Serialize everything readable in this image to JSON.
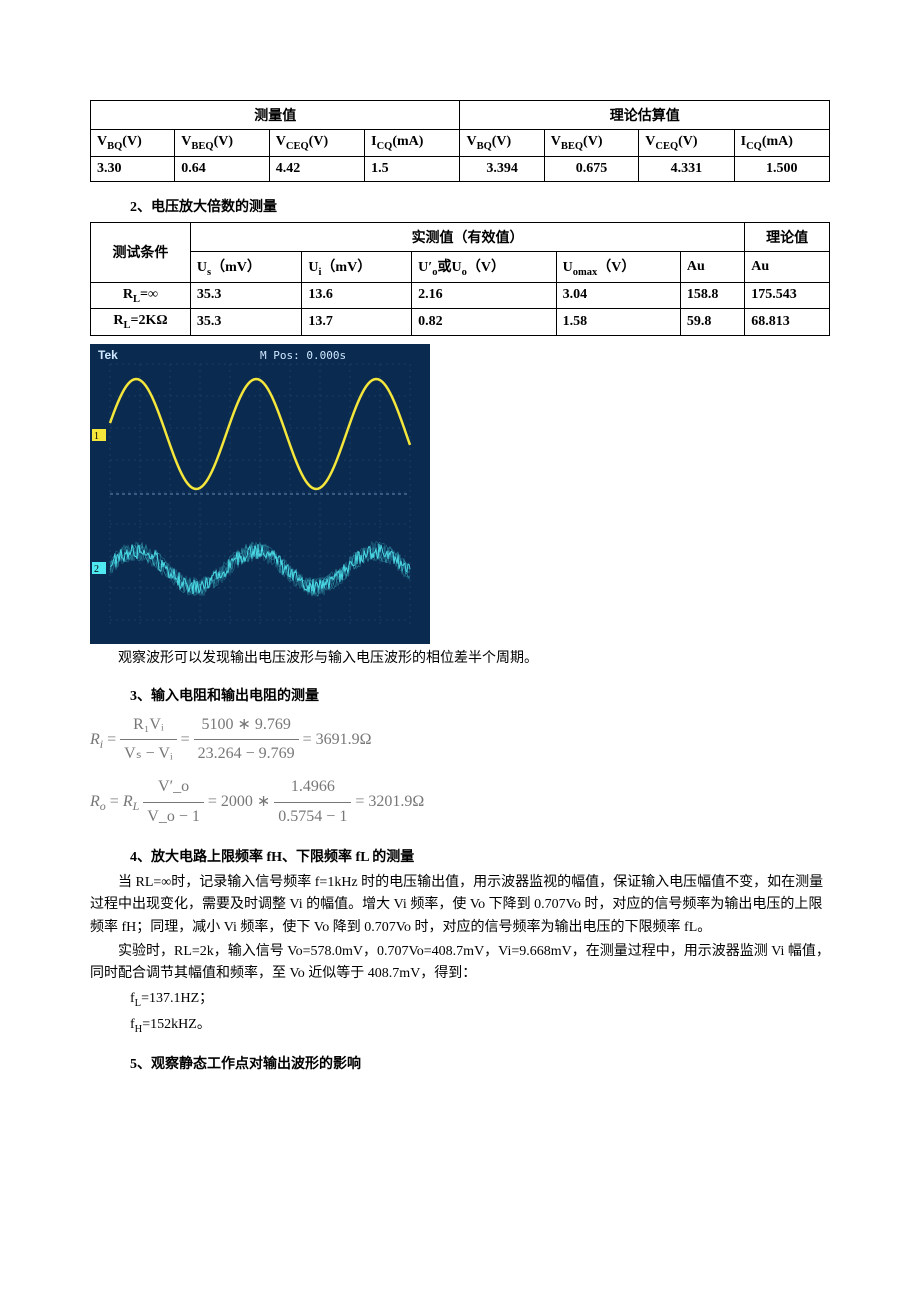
{
  "table1": {
    "header_group_left": "测量值",
    "header_group_right": "理论估算值",
    "cols": [
      "V_BQ(V)",
      "V_BEQ(V)",
      "V_CEQ(V)",
      "I_CQ(mA)",
      "V_BQ(V)",
      "V_BEQ(V)",
      "V_CEQ(V)",
      "I_CQ(mA)"
    ],
    "cols_main": [
      "V",
      "V",
      "V",
      "I",
      "V",
      "V",
      "V",
      "I"
    ],
    "cols_sub": [
      "BQ",
      "BEQ",
      "CEQ",
      "CQ",
      "BQ",
      "BEQ",
      "CEQ",
      "CQ"
    ],
    "cols_unit": [
      "(V)",
      "(V)",
      "(V)",
      "(mA)",
      "(V)",
      "(V)",
      "(V)",
      "(mA)"
    ],
    "row": [
      "3.30",
      "0.64",
      "4.42",
      "1.5",
      "3.394",
      "0.675",
      "4.331",
      "1.500"
    ]
  },
  "section2_title": "2、电压放大倍数的测量",
  "table2": {
    "rowhead": "测试条件",
    "group_mid": "实测值（有效值）",
    "group_right": "理论值",
    "cols": [
      "U_s（mV）",
      "U_i（mV）",
      "U′_o或U_o（V）",
      "U_omax（V）",
      "Au",
      "Au"
    ],
    "rows": [
      {
        "cond": "R_L=∞",
        "vals": [
          "35.3",
          "13.6",
          "2.16",
          "3.04",
          "158.8",
          "175.543"
        ]
      },
      {
        "cond": "R_L=2KΩ",
        "vals": [
          "35.3",
          "13.7",
          "0.82",
          "1.58",
          "59.8",
          "68.813"
        ]
      }
    ]
  },
  "scope": {
    "bg": "#0a2a50",
    "grid": "#2b4f78",
    "wave1_color": "#f5e63b",
    "wave2_color": "#4fe8f0",
    "top_text": "M Pos: 0.000s",
    "brand": "Tek"
  },
  "scope_caption": "观察波形可以发现输出电压波形与输入电压波形的相位差半个周期。",
  "section3_title": "3、输入电阻和输出电阻的测量",
  "formula": {
    "ri": {
      "lhs": "R_i =",
      "num1": "R₁Vᵢ",
      "den1": "Vₛ − Vᵢ",
      "eq": "=",
      "num2": "5100 ∗ 9.769",
      "den2": "23.264 − 9.769",
      "result": "= 3691.9Ω"
    },
    "ro": {
      "lhs": "R_o = R_L",
      "num1": "V′_o",
      "den1": "V_o − 1",
      "eq": "= 2000 ∗",
      "num2": "1.4966",
      "den2": "0.5754 − 1",
      "result": "= 3201.9Ω"
    }
  },
  "section4_title": "4、放大电路上限频率 fH、下限频率 fL 的测量",
  "para4_1": "当 RL=∞时，记录输入信号频率 f=1kHz 时的电压输出值，用示波器监视的幅值，保证输入电压幅值不变，如在测量过程中出现变化，需要及时调整 Vi 的幅值。增大 Vi 频率，使 Vo 下降到 0.707Vo 时，对应的信号频率为输出电压的上限频率 fH；同理，减小 Vi 频率，使下 Vo 降到 0.707Vo 时，对应的信号频率为输出电压的下限频率 fL。",
  "para4_2": "实验时，RL=2k，输入信号 Vo=578.0mV，0.707Vo=408.7mV，Vi=9.668mV，在测量过程中，用示波器监测 Vi 幅值，同时配合调节其幅值和频率，至 Vo 近似等于 408.7mV，得到：",
  "fL": "f_L=137.1HZ；",
  "fH": "f_H=152kHZ。",
  "section5_title": "5、观察静态工作点对输出波形的影响"
}
